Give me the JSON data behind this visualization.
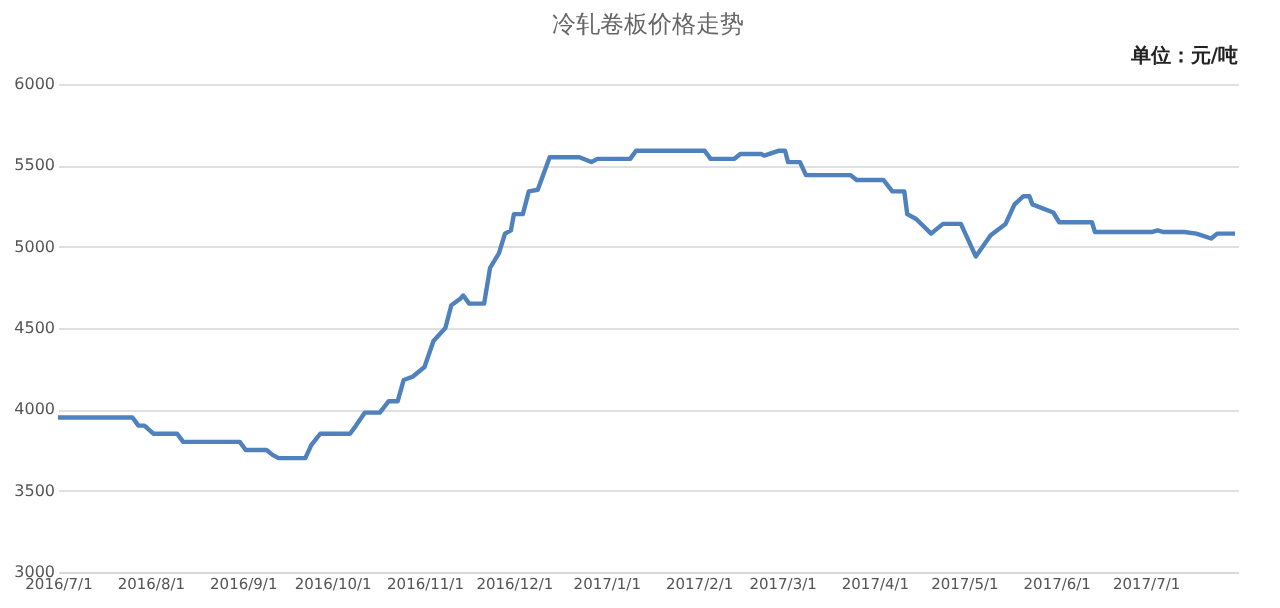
{
  "chart_data": {
    "type": "line",
    "title": "冷轧卷板价格走势",
    "annotations": [
      "单位：元/吨"
    ],
    "x": [
      "2016-07-01",
      "2016-07-26",
      "2016-07-28",
      "2016-07-30",
      "2016-08-02",
      "2016-08-10",
      "2016-08-12",
      "2016-08-31",
      "2016-09-02",
      "2016-09-09",
      "2016-09-11",
      "2016-09-13",
      "2016-09-22",
      "2016-09-24",
      "2016-09-27",
      "2016-10-07",
      "2016-10-09",
      "2016-10-12",
      "2016-10-17",
      "2016-10-20",
      "2016-10-23",
      "2016-10-25",
      "2016-10-28",
      "2016-11-01",
      "2016-11-04",
      "2016-11-08",
      "2016-11-10",
      "2016-11-13",
      "2016-11-14",
      "2016-11-16",
      "2016-11-21",
      "2016-11-23",
      "2016-11-26",
      "2016-11-28",
      "2016-11-30",
      "2016-12-01",
      "2016-12-04",
      "2016-12-06",
      "2016-12-09",
      "2016-12-11",
      "2016-12-13",
      "2016-12-23",
      "2016-12-27",
      "2016-12-29",
      "2017-01-09",
      "2017-01-11",
      "2017-02-03",
      "2017-02-05",
      "2017-02-13",
      "2017-02-15",
      "2017-02-22",
      "2017-02-23",
      "2017-02-28",
      "2017-03-02",
      "2017-03-03",
      "2017-03-07",
      "2017-03-09",
      "2017-03-24",
      "2017-03-26",
      "2017-04-04",
      "2017-04-07",
      "2017-04-11",
      "2017-04-12",
      "2017-04-15",
      "2017-04-20",
      "2017-04-24",
      "2017-04-30",
      "2017-05-05",
      "2017-05-10",
      "2017-05-15",
      "2017-05-18",
      "2017-05-21",
      "2017-05-23",
      "2017-05-24",
      "2017-05-31",
      "2017-06-02",
      "2017-06-13",
      "2017-06-14",
      "2017-07-03",
      "2017-07-05",
      "2017-07-07",
      "2017-07-14",
      "2017-07-18",
      "2017-07-23",
      "2017-07-25",
      "2017-07-31"
    ],
    "series": [
      {
        "color": "#4f81bd",
        "values": [
          3950,
          3950,
          3900,
          3900,
          3850,
          3850,
          3800,
          3800,
          3750,
          3750,
          3720,
          3700,
          3700,
          3780,
          3850,
          3850,
          3900,
          3980,
          3980,
          4050,
          4050,
          4180,
          4200,
          4260,
          4420,
          4500,
          4640,
          4680,
          4700,
          4650,
          4650,
          4870,
          4960,
          5080,
          5100,
          5200,
          5200,
          5340,
          5350,
          5450,
          5550,
          5550,
          5520,
          5540,
          5540,
          5590,
          5590,
          5540,
          5540,
          5570,
          5570,
          5560,
          5590,
          5590,
          5520,
          5520,
          5440,
          5440,
          5410,
          5410,
          5340,
          5340,
          5200,
          5170,
          5080,
          5140,
          5140,
          4940,
          5070,
          5140,
          5260,
          5310,
          5310,
          5260,
          5210,
          5150,
          5150,
          5090,
          5090,
          5100,
          5090,
          5090,
          5080,
          5050,
          5080,
          5080
        ]
      }
    ],
    "xlim": [
      "2016-07-01",
      "2017-08-01"
    ],
    "xticks": [
      {
        "value": "2016-07-01",
        "label": "2016/7/1"
      },
      {
        "value": "2016-08-01",
        "label": "2016/8/1"
      },
      {
        "value": "2016-09-01",
        "label": "2016/9/1"
      },
      {
        "value": "2016-10-01",
        "label": "2016/10/1"
      },
      {
        "value": "2016-11-01",
        "label": "2016/11/1"
      },
      {
        "value": "2016-12-01",
        "label": "2016/12/1"
      },
      {
        "value": "2017-01-01",
        "label": "2017/1/1"
      },
      {
        "value": "2017-02-01",
        "label": "2017/2/1"
      },
      {
        "value": "2017-03-01",
        "label": "2017/3/1"
      },
      {
        "value": "2017-04-01",
        "label": "2017/4/1"
      },
      {
        "value": "2017-05-01",
        "label": "2017/5/1"
      },
      {
        "value": "2017-06-01",
        "label": "2017/6/1"
      },
      {
        "value": "2017-07-01",
        "label": "2017/7/1"
      }
    ],
    "ylim": [
      3000,
      6000
    ],
    "yticks": [
      3000,
      3500,
      4000,
      4500,
      5000,
      5500,
      6000
    ],
    "grid": "y",
    "marker": "none",
    "line_style": "solid"
  }
}
